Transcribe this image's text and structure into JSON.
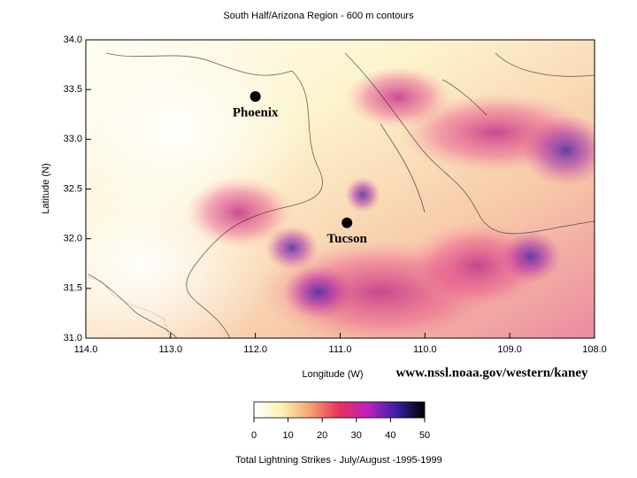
{
  "chart_data": {
    "type": "heatmap",
    "title": "South Half/Arizona Region - 600 m contours",
    "xlabel": "Longitude (W)",
    "ylabel": "Latitude (N)",
    "credit": "www.nssl.noaa.gov/western/kaney",
    "xlim": [
      114,
      108
    ],
    "ylim": [
      31,
      34
    ],
    "xticks": [
      {
        "value": 114,
        "label": "114.0"
      },
      {
        "value": 113,
        "label": "113.0"
      },
      {
        "value": 112,
        "label": "112.0"
      },
      {
        "value": 111,
        "label": "111.0"
      },
      {
        "value": 110,
        "label": "110.0"
      },
      {
        "value": 109,
        "label": "109.0"
      },
      {
        "value": 108,
        "label": "108.0"
      }
    ],
    "yticks": [
      {
        "value": 31,
        "label": "31.0"
      },
      31.5,
      {
        "value": 32,
        "label": "32.0"
      },
      32.5,
      {
        "value": 33,
        "label": "33.0"
      },
      33.5,
      {
        "value": 34,
        "label": "34.0"
      }
    ],
    "cities": [
      {
        "name": "Phoenix",
        "x": 112.0,
        "y": 33.43
      },
      {
        "name": "Tucson",
        "x": 110.92,
        "y": 32.16
      }
    ],
    "colorbar": {
      "label": "Total Lightning Strikes - July/August -1995-1999",
      "lim": [
        0,
        50
      ],
      "ticks": [
        0,
        10,
        20,
        30,
        40,
        50
      ],
      "colors": [
        "#ffffff",
        "#fdf0b0",
        "#f6a070",
        "#e8305a",
        "#c020c0",
        "#3a20a8",
        "#000000"
      ]
    }
  }
}
